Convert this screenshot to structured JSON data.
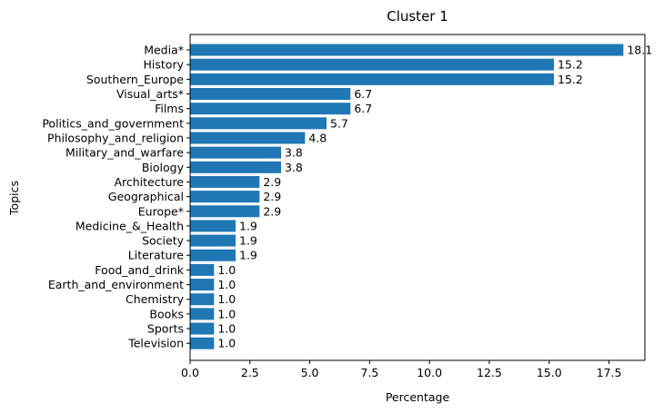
{
  "chart_data": {
    "type": "bar",
    "orientation": "horizontal",
    "title": "Cluster 1",
    "xlabel": "Percentage",
    "ylabel": "Topics",
    "xlim": [
      0,
      19.0
    ],
    "xticks": [
      "0.0",
      "2.5",
      "5.0",
      "7.5",
      "10.0",
      "12.5",
      "15.0",
      "17.5"
    ],
    "grid": false,
    "bar_color": "#1f77b4",
    "categories": [
      "Media*",
      "History",
      "Southern_Europe",
      "Visual_arts*",
      "Films",
      "Politics_and_government",
      "Philosophy_and_religion",
      "Military_and_warfare",
      "Biology",
      "Architecture",
      "Geographical",
      "Europe*",
      "Medicine_&_Health",
      "Society",
      "Literature",
      "Food_and_drink",
      "Earth_and_environment",
      "Chemistry",
      "Books",
      "Sports",
      "Television"
    ],
    "values": [
      18.1,
      15.2,
      15.2,
      6.7,
      6.7,
      5.7,
      4.8,
      3.8,
      3.8,
      2.9,
      2.9,
      2.9,
      1.9,
      1.9,
      1.9,
      1.0,
      1.0,
      1.0,
      1.0,
      1.0,
      1.0
    ],
    "value_labels": [
      "18.1",
      "15.2",
      "15.2",
      "6.7",
      "6.7",
      "5.7",
      "4.8",
      "3.8",
      "3.8",
      "2.9",
      "2.9",
      "2.9",
      "1.9",
      "1.9",
      "1.9",
      "1.0",
      "1.0",
      "1.0",
      "1.0",
      "1.0",
      "1.0"
    ]
  }
}
